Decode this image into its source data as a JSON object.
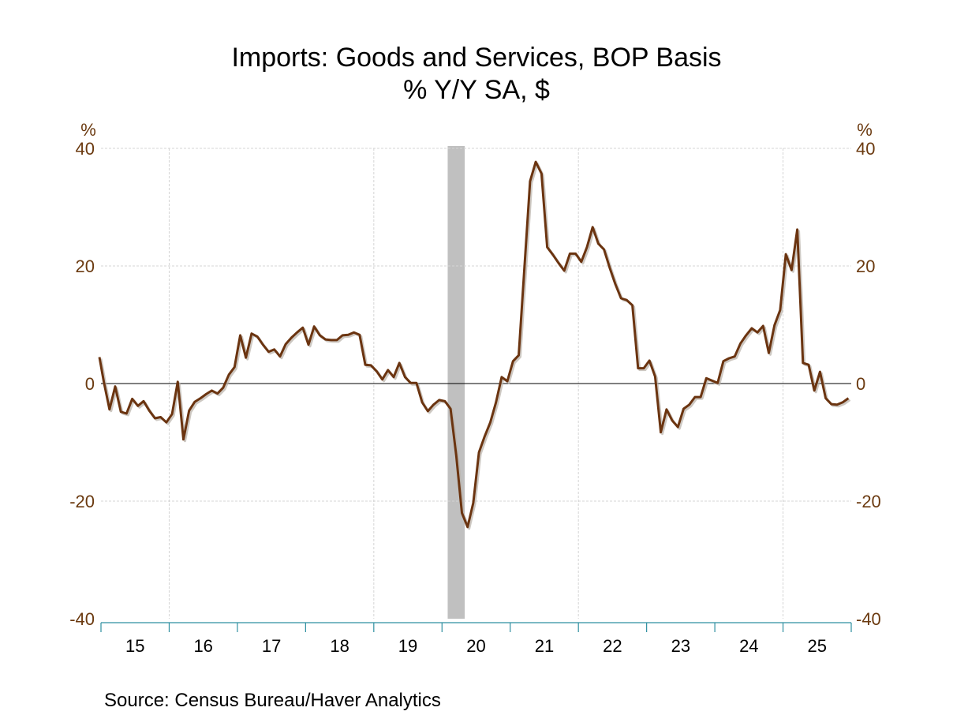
{
  "chart_data": {
    "type": "line",
    "title": "Imports: Goods and Services, BOP Basis",
    "subtitle": "% Y/Y   SA, $",
    "ylabel_left": "%",
    "ylabel_right": "%",
    "xlabel": "",
    "ylim": [
      -40,
      40
    ],
    "yticks": [
      40,
      20,
      0,
      -20,
      -40
    ],
    "ytick_labels": [
      "40",
      "20",
      "0",
      "-20",
      "-40"
    ],
    "xlim": [
      "2015-01",
      "2025-12"
    ],
    "xtick_labels": [
      "15",
      "16",
      "17",
      "18",
      "19",
      "20",
      "21",
      "22",
      "23",
      "24",
      "25"
    ],
    "grid": true,
    "zero_line": true,
    "source": "Source:  Census Bureau/Haver Analytics",
    "recession_shading": [
      {
        "start": "2020-02",
        "end": "2020-04"
      }
    ],
    "series": [
      {
        "name": "Imports: Goods and Services, BOP Basis (% Y/Y)",
        "color": "#6b3410",
        "frequency": "monthly",
        "start": "2014-12",
        "values": [
          4.5,
          0.3,
          -4.4,
          -0.5,
          -4.8,
          -5.1,
          -2.6,
          -3.8,
          -3.0,
          -4.6,
          -5.9,
          -5.7,
          -6.6,
          -5.2,
          0.3,
          -9.5,
          -4.6,
          -3.1,
          -2.5,
          -1.8,
          -1.2,
          -1.7,
          -0.7,
          1.5,
          2.8,
          8.2,
          4.4,
          8.5,
          8.0,
          6.6,
          5.4,
          5.8,
          4.6,
          6.7,
          7.8,
          8.7,
          9.5,
          6.6,
          9.7,
          8.2,
          7.5,
          7.4,
          7.4,
          8.2,
          8.3,
          8.7,
          8.3,
          3.2,
          3.1,
          2.1,
          0.7,
          2.3,
          1.1,
          3.5,
          1.1,
          0.1,
          0.1,
          -3.2,
          -4.7,
          -3.6,
          -2.8,
          -3.0,
          -4.3,
          -12.2,
          -22.0,
          -24.4,
          -20.3,
          -11.7,
          -9.0,
          -6.6,
          -3.2,
          1.1,
          0.4,
          3.8,
          4.8,
          19.6,
          34.4,
          37.7,
          35.7,
          23.2,
          21.9,
          20.5,
          19.2,
          22.1,
          22.1,
          20.7,
          23.2,
          26.6,
          23.8,
          22.8,
          19.7,
          16.9,
          14.5,
          14.2,
          13.3,
          2.6,
          2.6,
          3.9,
          1.2,
          -8.3,
          -4.4,
          -6.3,
          -7.4,
          -4.3,
          -3.6,
          -2.3,
          -2.3,
          0.9,
          0.5,
          0.1,
          3.8,
          4.3,
          4.6,
          6.8,
          8.2,
          9.4,
          8.7,
          9.8,
          5.2,
          9.9,
          12.5,
          22.0,
          19.3,
          26.2,
          3.5,
          3.2,
          -1.2,
          2.0,
          -2.5,
          -3.5,
          -3.6,
          -3.2,
          -2.5
        ]
      }
    ]
  },
  "colors": {
    "series": "#6b3410",
    "shadow": "#b8b0a8",
    "tick_label": "#6b3a10",
    "x_axis": "#2f8fa0",
    "grid": "#d4d4d4",
    "recession": "#c0c0c0",
    "zero_line": "#000000"
  }
}
